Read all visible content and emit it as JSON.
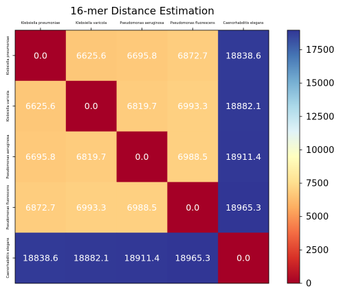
{
  "chart_data": {
    "type": "heatmap",
    "title": "16-mer Distance Estimation",
    "categories": [
      "Klebsiella pneumoniae",
      "Klebsiella varicola",
      "Pseudomonas aeruginosa",
      "Pseudomonas fluorescens",
      "Caenorhabditis elegans"
    ],
    "values": [
      [
        0.0,
        6625.6,
        6695.8,
        6872.7,
        18838.6
      ],
      [
        6625.6,
        0.0,
        6819.7,
        6993.3,
        18882.1
      ],
      [
        6695.8,
        6819.7,
        0.0,
        6988.5,
        18911.4
      ],
      [
        6872.7,
        6993.3,
        6988.5,
        0.0,
        18965.3
      ],
      [
        18838.6,
        18882.1,
        18911.4,
        18965.3,
        0.0
      ]
    ],
    "colormap": "RdYlBu",
    "vmin": 0,
    "vmax": 18965.3,
    "colorbar_ticks": [
      0,
      2500,
      5000,
      7500,
      10000,
      12500,
      15000,
      17500
    ],
    "colorbar_tick_labels": [
      "0",
      "2500",
      "5000",
      "7500",
      "10000",
      "12500",
      "15000",
      "17500"
    ],
    "x_tick_position": "top",
    "grid": false
  }
}
